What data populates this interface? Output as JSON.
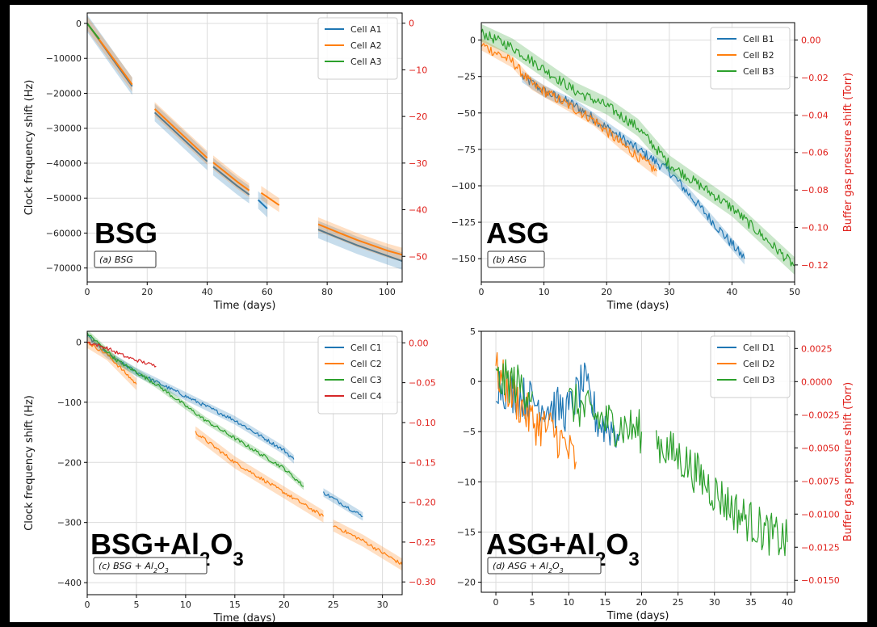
{
  "chart_data": [
    {
      "type": "line",
      "panel_label": "(a) BSG",
      "big_label": "BSG",
      "xlabel": "Time (days)",
      "ylabel": "Clock frequency shift (Hz)",
      "y2label": "",
      "xlim": [
        0,
        105
      ],
      "ylim": [
        -74000,
        3000
      ],
      "y2lim": [
        -55.5,
        2.2
      ],
      "xticks": [
        0,
        20,
        40,
        60,
        80,
        100
      ],
      "yticks": [
        0,
        -10000,
        -20000,
        -30000,
        -40000,
        -50000,
        -60000,
        -70000
      ],
      "y2ticks": [
        0,
        -10,
        -20,
        -30,
        -40,
        -50
      ],
      "grid": true,
      "legend_position": "top-right",
      "series": [
        {
          "name": "Cell A1",
          "color": "#1f77b4",
          "band": 2500,
          "segments": [
            [
              [
                0,
                0
              ],
              [
                5,
                -6000
              ],
              [
                10,
                -12000
              ],
              [
                15,
                -18000
              ]
            ],
            [
              [
                22.5,
                -25500
              ],
              [
                30,
                -31500
              ],
              [
                40,
                -39500
              ]
            ],
            [
              [
                42,
                -41000
              ],
              [
                50,
                -46500
              ],
              [
                54,
                -49000
              ]
            ],
            [
              [
                57,
                -50500
              ],
              [
                60,
                -53000
              ]
            ],
            [
              [
                77,
                -59000
              ],
              [
                90,
                -63500
              ],
              [
                100,
                -66500
              ],
              [
                105,
                -68000
              ]
            ]
          ]
        },
        {
          "name": "Cell A2",
          "color": "#ff7f0e",
          "band": 2000,
          "segments": [
            [
              [
                0,
                0
              ],
              [
                5,
                -5800
              ],
              [
                10,
                -11600
              ],
              [
                15,
                -17500
              ]
            ],
            [
              [
                22.5,
                -24500
              ],
              [
                30,
                -30500
              ],
              [
                40,
                -38500
              ]
            ],
            [
              [
                42,
                -39800
              ],
              [
                50,
                -45300
              ],
              [
                54,
                -47800
              ]
            ],
            [
              [
                58,
                -48500
              ],
              [
                64,
                -52000
              ]
            ],
            [
              [
                77,
                -57500
              ],
              [
                90,
                -62000
              ],
              [
                100,
                -65000
              ],
              [
                105,
                -66200
              ]
            ]
          ]
        },
        {
          "name": "Cell A3",
          "color": "#2ca02c",
          "band": 0,
          "segments": [
            [
              [
                0,
                0
              ],
              [
                4,
                -4500
              ]
            ]
          ]
        }
      ]
    },
    {
      "type": "line",
      "panel_label": "(b) ASG",
      "big_label": "ASG",
      "xlabel": "Time (days)",
      "ylabel": "",
      "y2label": "Buffer gas pressure shift (Torr)",
      "xlim": [
        0,
        50
      ],
      "ylim": [
        -166,
        12
      ],
      "y2lim": [
        -0.1291,
        0.0093
      ],
      "xticks": [
        0,
        10,
        20,
        30,
        40,
        50
      ],
      "yticks": [
        0,
        -25,
        -50,
        -75,
        -100,
        -125,
        -150
      ],
      "y2ticks": [
        0.0,
        -0.02,
        -0.04,
        -0.06,
        -0.08,
        -0.1,
        -0.12
      ],
      "grid": true,
      "legend_position": "top-right",
      "series": [
        {
          "name": "Cell B1",
          "color": "#1f77b4",
          "band": 4,
          "segments": [
            [
              [
                6.5,
                -25
              ],
              [
                10,
                -35
              ],
              [
                15,
                -45
              ],
              [
                20,
                -60
              ],
              [
                25,
                -75
              ],
              [
                30,
                -90
              ],
              [
                35,
                -115
              ],
              [
                40,
                -140
              ],
              [
                42,
                -150
              ]
            ]
          ]
        },
        {
          "name": "Cell B2",
          "color": "#ff7f0e",
          "band": 4,
          "segments": [
            [
              [
                0,
                -3
              ],
              [
                5,
                -15
              ],
              [
                8,
                -30
              ],
              [
                12,
                -40
              ],
              [
                18,
                -55
              ],
              [
                22,
                -70
              ],
              [
                25,
                -80
              ],
              [
                28,
                -90
              ]
            ]
          ]
        },
        {
          "name": "Cell B3",
          "color": "#2ca02c",
          "band": 6,
          "segments": [
            [
              [
                0,
                5
              ],
              [
                5,
                -5
              ],
              [
                10,
                -20
              ],
              [
                15,
                -35
              ],
              [
                20,
                -45
              ],
              [
                25,
                -60
              ],
              [
                30,
                -85
              ],
              [
                35,
                -100
              ],
              [
                40,
                -115
              ],
              [
                45,
                -135
              ],
              [
                50,
                -155
              ]
            ]
          ]
        }
      ]
    },
    {
      "type": "line",
      "panel_label": "(c) BSG + Al2O3",
      "big_label": "BSG+Al2O3",
      "xlabel": "Time (days)",
      "ylabel": "Clock frequency shift (Hz)",
      "y2label": "",
      "xlim": [
        0,
        32
      ],
      "ylim": [
        -420,
        18
      ],
      "y2lim": [
        -0.316,
        0.0145
      ],
      "xticks": [
        0,
        5,
        10,
        15,
        20,
        25,
        30
      ],
      "yticks": [
        0,
        -100,
        -200,
        -300,
        -400
      ],
      "y2ticks": [
        0.0,
        -0.05,
        -0.1,
        -0.15,
        -0.2,
        -0.25,
        -0.3
      ],
      "grid": true,
      "legend_position": "top-right",
      "series": [
        {
          "name": "Cell C1",
          "color": "#1f77b4",
          "band": 7,
          "segments": [
            [
              [
                0,
                10
              ],
              [
                2,
                -20
              ],
              [
                5,
                -50
              ],
              [
                10,
                -90
              ],
              [
                15,
                -130
              ],
              [
                20,
                -180
              ],
              [
                21,
                -195
              ]
            ],
            [
              [
                24,
                -250
              ],
              [
                26,
                -270
              ],
              [
                28,
                -290
              ]
            ]
          ]
        },
        {
          "name": "Cell C2",
          "color": "#ff7f0e",
          "band": 10,
          "segments": [
            [
              [
                0,
                0
              ],
              [
                2,
                -20
              ],
              [
                5,
                -70
              ]
            ],
            [
              [
                11,
                -150
              ],
              [
                15,
                -200
              ],
              [
                20,
                -250
              ],
              [
                24,
                -290
              ]
            ],
            [
              [
                25,
                -305
              ],
              [
                28,
                -330
              ],
              [
                32,
                -370
              ]
            ]
          ]
        },
        {
          "name": "Cell C3",
          "color": "#2ca02c",
          "band": 6,
          "segments": [
            [
              [
                0,
                15
              ],
              [
                3,
                -30
              ],
              [
                7,
                -70
              ],
              [
                12,
                -130
              ],
              [
                16,
                -170
              ],
              [
                20,
                -210
              ],
              [
                22,
                -240
              ]
            ]
          ]
        },
        {
          "name": "Cell C4",
          "color": "#d62728",
          "band": 0,
          "segments": [
            [
              [
                0,
                0
              ],
              [
                2,
                -10
              ],
              [
                4,
                -25
              ],
              [
                7,
                -40
              ]
            ]
          ]
        }
      ]
    },
    {
      "type": "line",
      "panel_label": "(d) ASG + Al2O3",
      "big_label": "ASG+Al2O3",
      "xlabel": "Time (days)",
      "ylabel": "",
      "y2label": "Buffer gas pressure shift (Torr)",
      "xlim": [
        -2,
        41
      ],
      "ylim": [
        -21,
        5
      ],
      "y2lim": [
        -0.0159,
        0.0038
      ],
      "xticks": [
        0,
        5,
        10,
        15,
        20,
        25,
        30,
        35,
        40
      ],
      "yticks": [
        5,
        0,
        -5,
        -10,
        -15,
        -20
      ],
      "y2ticks": [
        0.0025,
        0.0,
        -0.0025,
        -0.005,
        -0.0075,
        -0.01,
        -0.0125,
        -0.015
      ],
      "grid": true,
      "legend_position": "top-right",
      "series": [
        {
          "name": "Cell D1",
          "color": "#1f77b4",
          "band": 0,
          "segments": [
            [
              [
                0,
                0
              ],
              [
                2,
                -1
              ],
              [
                5,
                -2
              ],
              [
                10,
                -3
              ],
              [
                12,
                0
              ],
              [
                14,
                -4
              ],
              [
                17,
                -5
              ]
            ]
          ]
        },
        {
          "name": "Cell D2",
          "color": "#ff7f0e",
          "band": 0,
          "segments": [
            [
              [
                0,
                1
              ],
              [
                3,
                -2
              ],
              [
                5,
                -4
              ],
              [
                8,
                -5
              ],
              [
                11,
                -8
              ]
            ]
          ]
        },
        {
          "name": "Cell D3",
          "color": "#2ca02c",
          "band": 0,
          "segments": [
            [
              [
                0,
                0
              ],
              [
                2,
                0
              ],
              [
                5,
                -1
              ]
            ],
            [
              [
                10,
                -2
              ],
              [
                15,
                -4
              ],
              [
                20,
                -5
              ]
            ],
            [
              [
                22,
                -6
              ],
              [
                26,
                -8
              ],
              [
                30,
                -11
              ],
              [
                33,
                -13
              ],
              [
                37,
                -15
              ],
              [
                40,
                -16
              ]
            ]
          ]
        }
      ]
    }
  ]
}
